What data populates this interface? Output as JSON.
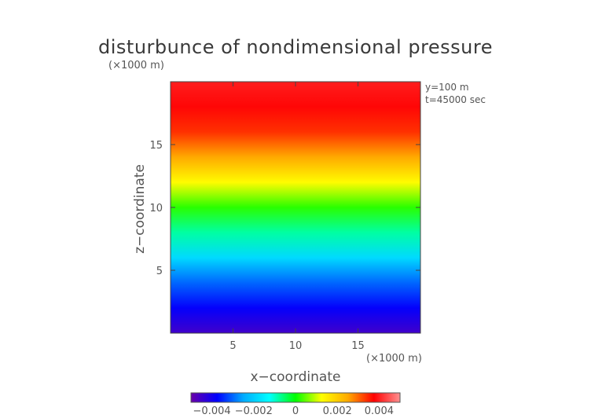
{
  "chart_data": {
    "type": "heatmap",
    "title": "disturbunce of nondimensional pressure",
    "xlabel": "x−coordinate",
    "ylabel": "z−coordinate",
    "x_unit": "(×1000 m)",
    "z_unit": "(×1000 m)",
    "annotations": [
      "y=100 m",
      "t=45000 sec"
    ],
    "xlim": [
      0,
      20
    ],
    "ylim": [
      0,
      20
    ],
    "xticks": [
      5,
      10,
      15
    ],
    "yticks": [
      5,
      10,
      15
    ],
    "z_range": [
      -0.005,
      0.005
    ],
    "colorbar_ticks": [
      {
        "value": -0.004,
        "label": "−0.004"
      },
      {
        "value": -0.002,
        "label": "−0.002"
      },
      {
        "value": 0,
        "label": "0"
      },
      {
        "value": 0.002,
        "label": "0.002"
      },
      {
        "value": 0.004,
        "label": "0.004"
      }
    ],
    "profile_z": [
      0,
      2,
      4,
      6,
      8,
      10,
      12,
      14,
      16,
      18,
      20
    ],
    "profile_value": [
      -0.0045,
      -0.0038,
      -0.003,
      -0.0018,
      -0.0008,
      0.0002,
      0.0013,
      0.0025,
      0.0034,
      0.0038,
      0.004
    ],
    "colormap": [
      "#6a00a8",
      "#0000ff",
      "#00aaff",
      "#00ffff",
      "#00ff00",
      "#ffff00",
      "#ffaa00",
      "#ff0000",
      "#ff9090"
    ]
  }
}
